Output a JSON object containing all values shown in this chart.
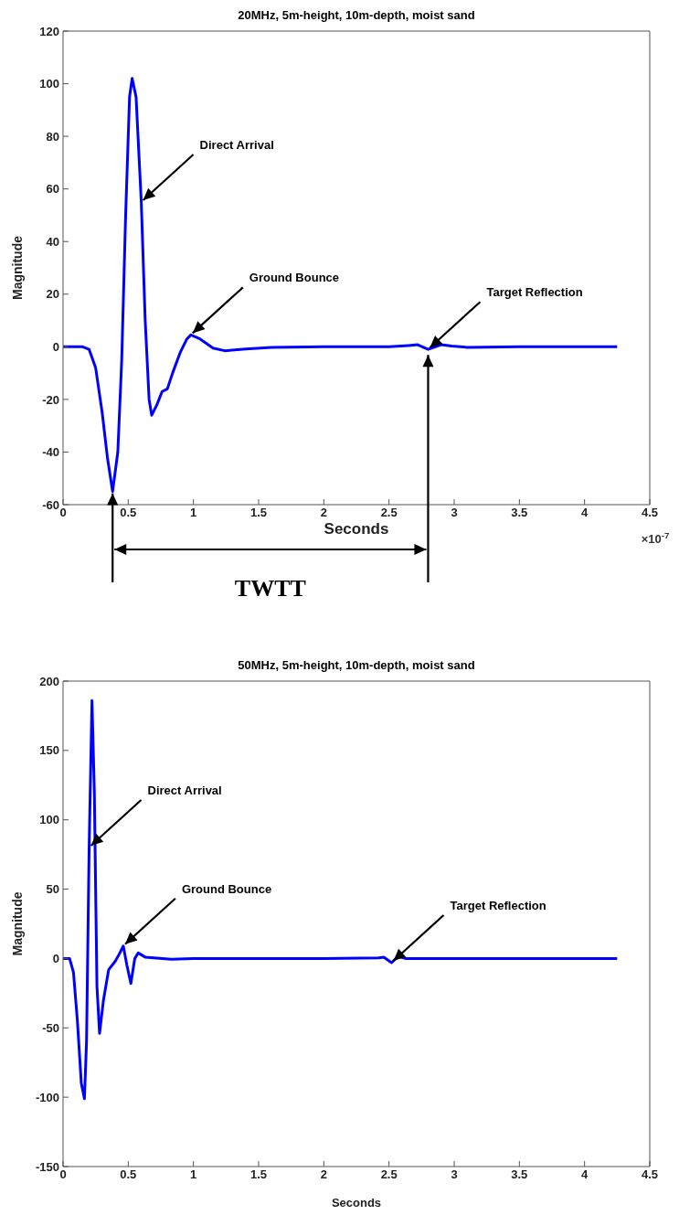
{
  "chart_data": [
    {
      "type": "line",
      "title": "20MHz, 5m-height, 10m-depth, moist sand",
      "xlabel": "Seconds",
      "ylabel": "Magnitude",
      "xlim": [
        0,
        4.5
      ],
      "xticks": [
        0,
        0.5,
        1,
        1.5,
        2,
        2.5,
        3,
        3.5,
        4,
        4.5
      ],
      "ylim": [
        -60,
        120
      ],
      "yticks": [
        -60,
        -40,
        -20,
        0,
        20,
        40,
        60,
        80,
        100,
        120
      ],
      "marker": "none",
      "series": [
        {
          "color": "#0000ff",
          "x": [
            0,
            0.15,
            0.2,
            0.25,
            0.3,
            0.34,
            0.38,
            0.42,
            0.45,
            0.48,
            0.51,
            0.53,
            0.56,
            0.6,
            0.63,
            0.66,
            0.68,
            0.72,
            0.76,
            0.8,
            0.84,
            0.9,
            0.95,
            0.98,
            1.05,
            1.15,
            1.24,
            1.4,
            1.6,
            2,
            2.5,
            2.65,
            2.72,
            2.8,
            2.9,
            2.98,
            3.1,
            3.5,
            4.25
          ],
          "values": [
            0,
            0,
            -1,
            -8,
            -25,
            -42,
            -55,
            -40,
            -5,
            50,
            95,
            102,
            95,
            55,
            10,
            -20,
            -26,
            -22,
            -17,
            -16,
            -10,
            -2,
            3,
            4.5,
            3,
            -0.5,
            -1.5,
            -0.8,
            -0.2,
            0,
            0,
            0.5,
            0.8,
            -1,
            0.8,
            0.3,
            -0.2,
            0,
            0
          ]
        }
      ],
      "annotations": [
        {
          "text": "Direct Arrival",
          "x": 0.6,
          "y": 55
        },
        {
          "text": "Ground Bounce",
          "x": 0.98,
          "y": 4.5
        },
        {
          "text": "Target Reflection",
          "x": 2.8,
          "y": -1
        },
        "×10$^{-7}$",
        "TWTT"
      ]
    },
    {
      "type": "line",
      "title": "50MHz, 5m-height, 10m-depth, moist sand",
      "xlabel": "Seconds",
      "ylabel": "Magnitude",
      "xlim": [
        0,
        4.5
      ],
      "xticks": [
        0,
        0.5,
        1,
        1.5,
        2,
        2.5,
        3,
        3.5,
        4,
        4.5
      ],
      "ylim": [
        -150,
        200
      ],
      "yticks": [
        -150,
        -100,
        -50,
        0,
        50,
        100,
        150,
        200
      ],
      "marker": "none",
      "series": [
        {
          "color": "#0000ff",
          "x": [
            0,
            0.05,
            0.08,
            0.11,
            0.14,
            0.164,
            0.18,
            0.2,
            0.222,
            0.24,
            0.26,
            0.28,
            0.31,
            0.35,
            0.4,
            0.43,
            0.462,
            0.49,
            0.52,
            0.55,
            0.576,
            0.63,
            0.83,
            1,
            2,
            2.42,
            2.46,
            2.52,
            2.57,
            2.63,
            3,
            4.25
          ],
          "values": [
            0,
            0,
            -10,
            -45,
            -90,
            -101,
            -60,
            80,
            186,
            120,
            -20,
            -54,
            -30,
            -8,
            -2,
            3,
            9,
            -5,
            -18,
            0,
            4,
            1,
            -0.5,
            0,
            0,
            0.5,
            1,
            -3,
            1.5,
            0,
            0,
            0
          ]
        }
      ],
      "annotations": [
        {
          "text": "Direct Arrival",
          "x": 0.2,
          "y": 80
        },
        {
          "text": "Ground Bounce",
          "x": 0.462,
          "y": 9
        },
        {
          "text": "Target Reflection",
          "x": 2.52,
          "y": -3
        }
      ]
    }
  ]
}
